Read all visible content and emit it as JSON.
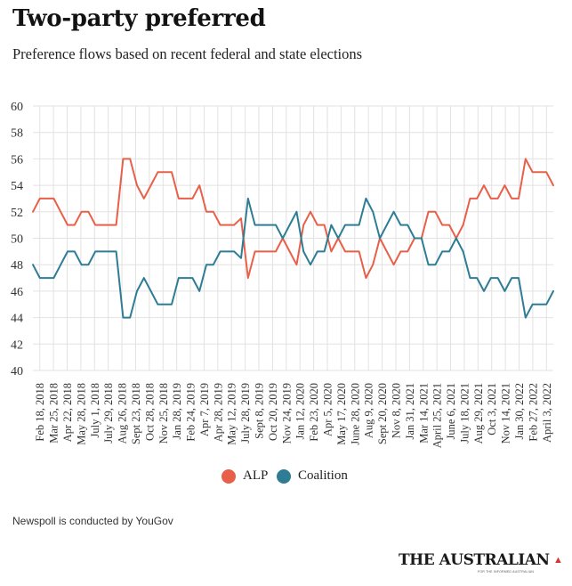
{
  "header": {
    "title": "Two-party preferred",
    "subtitle": "Preference flows based on recent federal and state elections"
  },
  "legend": {
    "alp": "ALP",
    "coalition": "Coalition"
  },
  "footer": {
    "note": "Newspoll is conducted by YouGov",
    "brand": "THE AUSTRALIAN",
    "brand_tagline": "FOR THE INFORMED AUSTRALIAN"
  },
  "colors": {
    "alp": "#e8604a",
    "coalition": "#2e7d95",
    "grid": "#e2e2e2",
    "text": "#333333"
  },
  "chart_data": {
    "type": "line",
    "title": "Two-party preferred",
    "subtitle": "Preference flows based on recent federal and state elections",
    "xlabel": "",
    "ylabel": "",
    "ylim": [
      40,
      60
    ],
    "yticks": [
      40,
      42,
      44,
      46,
      48,
      50,
      52,
      54,
      56,
      58,
      60
    ],
    "grid": true,
    "legend_position": "bottom-center",
    "x_tick_labels": [
      "Feb 18, 2018",
      "Mar 25, 2018",
      "Apr 22, 2018",
      "May 28, 2018",
      "July 1, 2018",
      "July 29, 2018",
      "Aug 26, 2018",
      "Sept 23, 2018",
      "Oct 28, 2018",
      "Nov 25, 2018",
      "Jan 28, 2019",
      "Feb 24, 2019",
      "Apr 7, 2019",
      "Apr 28, 2019",
      "May 12, 2019",
      "July 28, 2019",
      "Sept 8, 2019",
      "Oct 20, 2019",
      "Nov 24, 2019",
      "Jan 12, 2020",
      "Feb 23, 2020",
      "Apr 5, 2020",
      "May 17, 2020",
      "June 28, 2020",
      "Aug 9, 2020",
      "Sept 20, 2020",
      "Nov 8, 2020",
      "Jan 31, 2021",
      "Mar 14, 2021",
      "April 25, 2021",
      "June 6, 2021",
      "July 18, 2021",
      "Aug 29, 2021",
      "Oct 3, 2021",
      "Nov 14, 2021",
      "Jan 30, 2022",
      "Feb 27, 2022",
      "April 3, 2022"
    ],
    "series": [
      {
        "name": "ALP",
        "values": [
          52,
          53,
          53,
          53,
          52,
          51,
          51,
          52,
          52,
          51,
          51,
          51,
          51,
          56,
          56,
          54,
          53,
          54,
          55,
          55,
          55,
          53,
          53,
          53,
          54,
          52,
          52,
          51,
          51,
          51,
          51.5,
          47,
          49,
          49,
          49,
          49,
          50,
          49,
          48,
          51,
          52,
          51,
          51,
          49,
          50,
          49,
          49,
          49,
          47,
          48,
          50,
          49,
          48,
          49,
          49,
          50,
          50,
          52,
          52,
          51,
          51,
          50,
          51,
          53,
          53,
          54,
          53,
          53,
          54,
          53,
          53,
          56,
          55,
          55,
          55,
          54
        ]
      },
      {
        "name": "Coalition",
        "values": [
          48,
          47,
          47,
          47,
          48,
          49,
          49,
          48,
          48,
          49,
          49,
          49,
          49,
          44,
          44,
          46,
          47,
          46,
          45,
          45,
          45,
          47,
          47,
          47,
          46,
          48,
          48,
          49,
          49,
          49,
          48.5,
          53,
          51,
          51,
          51,
          51,
          50,
          51,
          52,
          49,
          48,
          49,
          49,
          51,
          50,
          51,
          51,
          51,
          53,
          52,
          50,
          51,
          52,
          51,
          51,
          50,
          50,
          48,
          48,
          49,
          49,
          50,
          49,
          47,
          47,
          46,
          47,
          47,
          46,
          47,
          47,
          44,
          45,
          45,
          45,
          46
        ]
      }
    ]
  }
}
